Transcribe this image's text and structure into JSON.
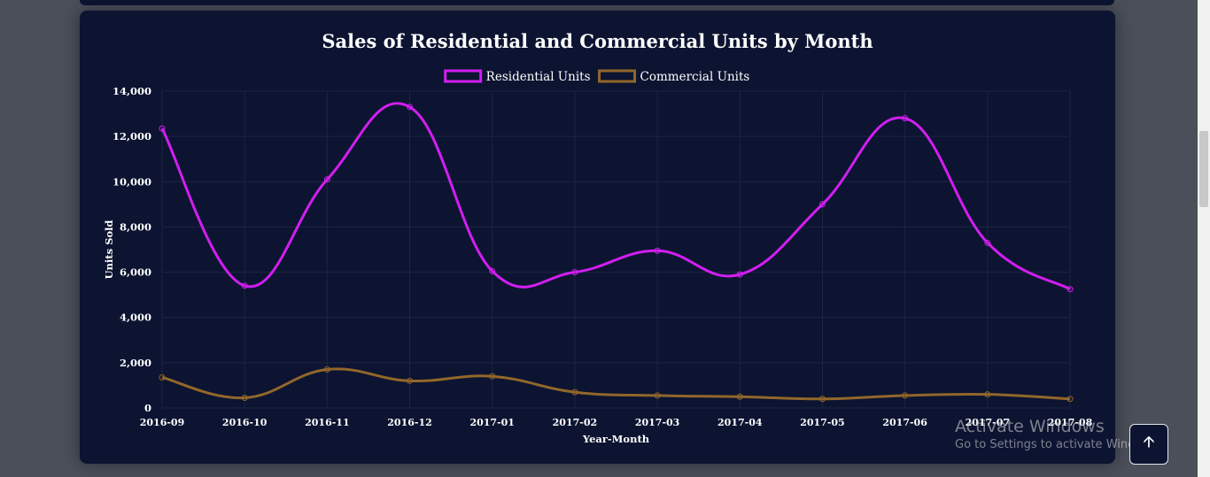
{
  "chart_data": {
    "type": "line",
    "title": "Sales of Residential and Commercial Units by Month",
    "xlabel": "Year-Month",
    "ylabel": "Units Sold",
    "categories": [
      "2016-09",
      "2016-10",
      "2016-11",
      "2016-12",
      "2017-01",
      "2017-02",
      "2017-03",
      "2017-04",
      "2017-05",
      "2017-06",
      "2017-07",
      "2017-08"
    ],
    "ylim": [
      0,
      14000
    ],
    "yticks": [
      "0",
      "2,000",
      "4,000",
      "6,000",
      "8,000",
      "10,000",
      "12,000",
      "14,000"
    ],
    "grid": true,
    "legend_position": "top-center",
    "series": [
      {
        "name": "Residential Units",
        "color": "#d21ef0",
        "values": [
          12350,
          5400,
          10100,
          13300,
          6050,
          6000,
          6950,
          5900,
          9000,
          12800,
          7300,
          5250
        ]
      },
      {
        "name": "Commercial Units",
        "color": "#92672a",
        "values": [
          1350,
          450,
          1700,
          1200,
          1400,
          700,
          550,
          500,
          400,
          550,
          600,
          400
        ]
      }
    ]
  },
  "watermark": {
    "line1": "Activate Windows",
    "line2": "Go to Settings to activate Windows."
  },
  "scroll_top_icon": "arrow-up-icon"
}
